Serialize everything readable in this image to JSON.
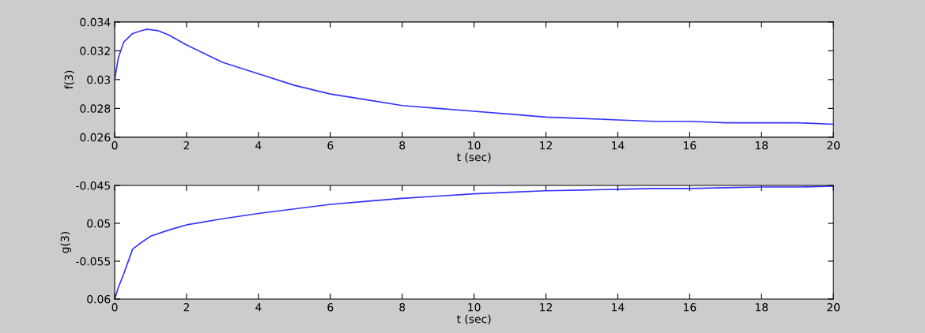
{
  "chart_data": [
    {
      "type": "line",
      "xlabel": "t (sec)",
      "ylabel": "f(3)",
      "xlim": [
        0,
        20
      ],
      "xticks": [
        0,
        2,
        4,
        6,
        8,
        10,
        12,
        14,
        16,
        18,
        20
      ],
      "ylim": [
        0.026,
        0.034
      ],
      "yticks": [
        0.026,
        0.028,
        0.03,
        0.032,
        0.034
      ],
      "series": [
        {
          "color": "#3333ff",
          "x": [
            0,
            0.1,
            0.25,
            0.5,
            0.75,
            0.9,
            1.2,
            1.5,
            2,
            2.5,
            3,
            3.5,
            4,
            5,
            6,
            7,
            8,
            9,
            10,
            11,
            12,
            13,
            14,
            15,
            16,
            17,
            18,
            19,
            20
          ],
          "values": [
            0.03,
            0.0315,
            0.0326,
            0.0332,
            0.0334,
            0.0335,
            0.0334,
            0.0331,
            0.0324,
            0.0318,
            0.0312,
            0.0308,
            0.0304,
            0.0296,
            0.029,
            0.0286,
            0.0282,
            0.028,
            0.0278,
            0.0276,
            0.0274,
            0.0273,
            0.0272,
            0.0271,
            0.0271,
            0.027,
            0.027,
            0.027,
            0.0269
          ]
        }
      ]
    },
    {
      "type": "line",
      "xlabel": "t (sec)",
      "ylabel": "g(3)",
      "xlim": [
        0,
        20
      ],
      "xticks": [
        0,
        2,
        4,
        6,
        8,
        10,
        12,
        14,
        16,
        18,
        20
      ],
      "ylim": [
        -0.06,
        -0.045
      ],
      "yticks": [
        {
          "value": -0.06,
          "label": "0.06"
        },
        -0.055,
        {
          "value": -0.05,
          "label": "0.05"
        },
        -0.045
      ],
      "series": [
        {
          "color": "#3333ff",
          "x": [
            0,
            0.1,
            0.25,
            0.5,
            0.75,
            1,
            1.5,
            2,
            3,
            4,
            5,
            6,
            7,
            8,
            9,
            10,
            11,
            12,
            13,
            14,
            15,
            16,
            17,
            18,
            19,
            20
          ],
          "values": [
            -0.06,
            -0.0585,
            -0.0567,
            -0.0534,
            -0.0525,
            -0.0517,
            -0.0509,
            -0.0502,
            -0.0494,
            -0.0487,
            -0.0481,
            -0.0475,
            -0.0471,
            -0.0467,
            -0.0464,
            -0.0461,
            -0.0459,
            -0.0457,
            -0.0456,
            -0.0455,
            -0.0454,
            -0.0454,
            -0.0453,
            -0.0452,
            -0.0452,
            -0.0451
          ]
        }
      ]
    }
  ]
}
